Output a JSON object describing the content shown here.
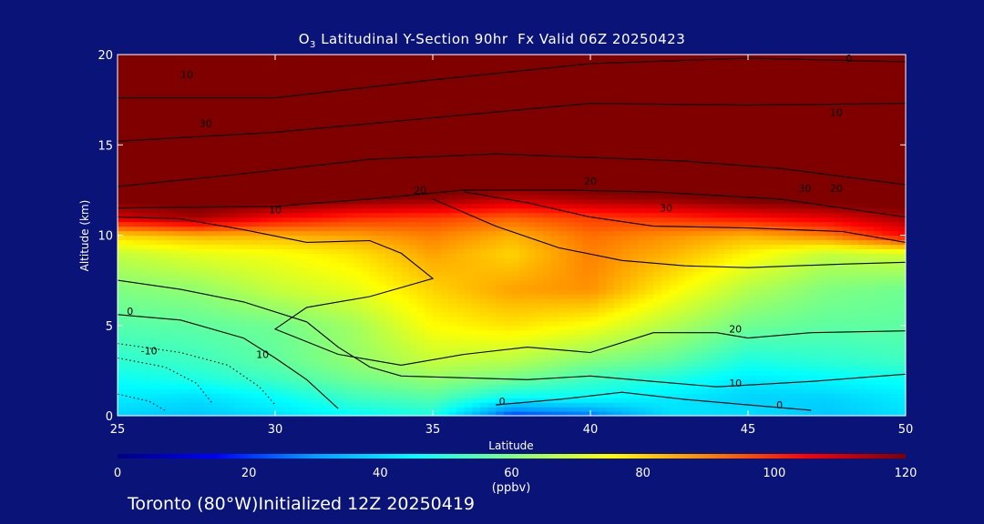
{
  "chart_data": {
    "type": "heatmap",
    "title": {
      "species": "O",
      "subscript": "3",
      "rest": " Latitudinal Y-Section 90hr  Fx Valid 06Z 20250423"
    },
    "xlabel": "Latitude",
    "ylabel": "Altitude (km)",
    "xlim": [
      25,
      50
    ],
    "ylim": [
      0,
      20
    ],
    "x_ticks": [
      "25",
      "30",
      "35",
      "40",
      "45",
      "50"
    ],
    "y_ticks": [
      "0",
      "5",
      "10",
      "15",
      "20"
    ],
    "colorbar": {
      "min": 0,
      "max": 120,
      "ticks": [
        "0",
        "20",
        "40",
        "60",
        "80",
        "100",
        "120"
      ],
      "unit_label": "(ppbv)",
      "colors": [
        "#000080",
        "#0000ff",
        "#00a0ff",
        "#00ffff",
        "#80ff80",
        "#ffff00",
        "#ff8000",
        "#ff0000",
        "#800000"
      ]
    },
    "contour_labels": [
      "10",
      "30",
      "0",
      "10",
      "20",
      "30",
      "20",
      "30",
      "10",
      "20",
      "0",
      "-10",
      "10",
      "20",
      "10",
      "0",
      "0"
    ],
    "ozone_field": {
      "latitudes": [
        25,
        27.5,
        30,
        32.5,
        35,
        37.5,
        40,
        42.5,
        45,
        47.5,
        50
      ],
      "altitudes": [
        0,
        1,
        2,
        3,
        5,
        7,
        9,
        10,
        11,
        12,
        13,
        20
      ],
      "values_ppbv": [
        [
          38,
          36,
          40,
          45,
          48,
          20,
          25,
          40,
          40,
          36,
          40
        ],
        [
          42,
          40,
          45,
          52,
          55,
          45,
          45,
          42,
          38,
          38,
          42
        ],
        [
          46,
          48,
          52,
          58,
          62,
          58,
          52,
          48,
          42,
          44,
          46
        ],
        [
          50,
          52,
          56,
          62,
          68,
          66,
          60,
          56,
          48,
          50,
          52
        ],
        [
          55,
          56,
          58,
          64,
          75,
          78,
          74,
          66,
          58,
          56,
          56
        ],
        [
          60,
          62,
          68,
          72,
          80,
          86,
          88,
          76,
          66,
          60,
          58
        ],
        [
          68,
          72,
          74,
          78,
          86,
          80,
          90,
          84,
          76,
          68,
          70
        ],
        [
          80,
          84,
          84,
          86,
          90,
          84,
          92,
          88,
          84,
          90,
          104
        ],
        [
          110,
          116,
          106,
          100,
          98,
          94,
          98,
          100,
          104,
          108,
          116
        ],
        [
          122,
          124,
          124,
          120,
          118,
          112,
          116,
          118,
          122,
          124,
          124
        ],
        [
          125,
          125,
          125,
          125,
          125,
          124,
          125,
          125,
          125,
          125,
          125
        ],
        [
          125,
          125,
          125,
          125,
          125,
          125,
          125,
          125,
          125,
          125,
          125
        ]
      ]
    }
  },
  "footer": "Toronto (80°W)Initialized 12Z 20250419"
}
